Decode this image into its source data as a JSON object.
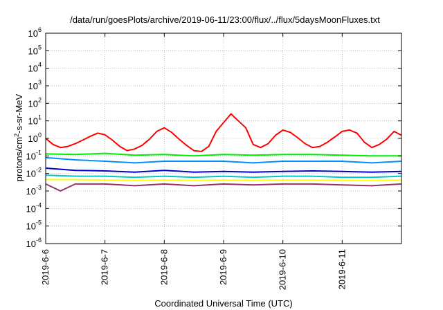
{
  "chart_data": {
    "type": "line",
    "title": "/data/run/goesPlots/archive/2019-06-11/23:00/flux/../flux/5daysMoonFluxes.txt",
    "xlabel": "Coordinated Universal Time (UTC)",
    "ylabel": {
      "pre": "protons/cm",
      "sup": "2",
      "post": "-s-sr-MeV"
    },
    "x_range": [
      "2019-06-06T00:00",
      "2019-06-12T00:00"
    ],
    "x_ticks": [
      "2019-6-6",
      "2019-6-7",
      "2019-6-8",
      "2019-6-9",
      "2019-6-10",
      "2019-6-11"
    ],
    "y_scale": "log",
    "ylim": [
      1e-06,
      1000000.0
    ],
    "y_ticks": [
      {
        "base": "10",
        "exp": "-6"
      },
      {
        "base": "10",
        "exp": "-5"
      },
      {
        "base": "10",
        "exp": "-4"
      },
      {
        "base": "10",
        "exp": "-3"
      },
      {
        "base": "10",
        "exp": "-2"
      },
      {
        "base": "10",
        "exp": "-1"
      },
      {
        "base": "10",
        "exp": "0"
      },
      {
        "base": "10",
        "exp": "1"
      },
      {
        "base": "10",
        "exp": "2"
      },
      {
        "base": "10",
        "exp": "3"
      },
      {
        "base": "10",
        "exp": "4"
      },
      {
        "base": "10",
        "exp": "5"
      },
      {
        "base": "10",
        "exp": "6"
      }
    ],
    "grid": true,
    "series": [
      {
        "color": "#ff0000",
        "x": [
          "2019-06-06T00:00",
          "2019-06-06T03:00",
          "2019-06-06T06:00",
          "2019-06-06T09:00",
          "2019-06-06T12:00",
          "2019-06-06T15:00",
          "2019-06-06T18:00",
          "2019-06-06T21:00",
          "2019-06-07T00:00",
          "2019-06-07T03:00",
          "2019-06-07T06:00",
          "2019-06-07T09:00",
          "2019-06-07T12:00",
          "2019-06-07T15:00",
          "2019-06-07T18:00",
          "2019-06-07T21:00",
          "2019-06-08T00:00",
          "2019-06-08T03:00",
          "2019-06-08T06:00",
          "2019-06-08T09:00",
          "2019-06-08T12:00",
          "2019-06-08T15:00",
          "2019-06-08T18:00",
          "2019-06-08T21:00",
          "2019-06-09T00:00",
          "2019-06-09T03:00",
          "2019-06-09T06:00",
          "2019-06-09T09:00",
          "2019-06-09T12:00",
          "2019-06-09T15:00",
          "2019-06-09T18:00",
          "2019-06-09T21:00",
          "2019-06-10T00:00",
          "2019-06-10T03:00",
          "2019-06-10T06:00",
          "2019-06-10T09:00",
          "2019-06-10T12:00",
          "2019-06-10T15:00",
          "2019-06-10T18:00",
          "2019-06-10T21:00",
          "2019-06-11T00:00",
          "2019-06-11T03:00",
          "2019-06-11T06:00",
          "2019-06-11T09:00",
          "2019-06-11T12:00",
          "2019-06-11T15:00",
          "2019-06-11T18:00",
          "2019-06-11T21:00",
          "2019-06-12T00:00"
        ],
        "values": [
          1.0,
          0.45,
          0.3,
          0.35,
          0.5,
          0.8,
          1.3,
          2.0,
          1.6,
          0.8,
          0.35,
          0.2,
          0.25,
          0.4,
          0.9,
          2.5,
          4.0,
          2.2,
          0.9,
          0.4,
          0.2,
          0.18,
          0.35,
          2.5,
          8.0,
          25.0,
          10.0,
          4.0,
          0.45,
          0.3,
          0.5,
          1.5,
          3.0,
          2.2,
          1.1,
          0.5,
          0.3,
          0.35,
          0.6,
          1.2,
          2.5,
          3.0,
          2.0,
          0.6,
          0.3,
          0.45,
          0.9,
          2.5,
          1.5
        ]
      },
      {
        "color": "#00ee00",
        "x": [
          "2019-06-06T00:00",
          "2019-06-06T12:00",
          "2019-06-07T00:00",
          "2019-06-07T12:00",
          "2019-06-08T00:00",
          "2019-06-08T12:00",
          "2019-06-09T00:00",
          "2019-06-09T12:00",
          "2019-06-10T00:00",
          "2019-06-10T12:00",
          "2019-06-11T00:00",
          "2019-06-11T12:00",
          "2019-06-12T00:00"
        ],
        "values": [
          0.13,
          0.12,
          0.14,
          0.11,
          0.12,
          0.1,
          0.12,
          0.11,
          0.12,
          0.12,
          0.11,
          0.1,
          0.1
        ]
      },
      {
        "color": "#0090ff",
        "x": [
          "2019-06-06T00:00",
          "2019-06-06T12:00",
          "2019-06-07T00:00",
          "2019-06-07T12:00",
          "2019-06-08T00:00",
          "2019-06-08T12:00",
          "2019-06-09T00:00",
          "2019-06-09T12:00",
          "2019-06-10T00:00",
          "2019-06-10T12:00",
          "2019-06-11T00:00",
          "2019-06-11T12:00",
          "2019-06-12T00:00"
        ],
        "values": [
          0.08,
          0.06,
          0.05,
          0.04,
          0.05,
          0.05,
          0.05,
          0.04,
          0.05,
          0.05,
          0.05,
          0.04,
          0.05
        ]
      },
      {
        "color": "#0000cc",
        "x": [
          "2019-06-06T00:00",
          "2019-06-06T12:00",
          "2019-06-07T00:00",
          "2019-06-07T12:00",
          "2019-06-08T00:00",
          "2019-06-08T12:00",
          "2019-06-09T00:00",
          "2019-06-09T12:00",
          "2019-06-10T00:00",
          "2019-06-10T12:00",
          "2019-06-11T00:00",
          "2019-06-11T12:00",
          "2019-06-12T00:00"
        ],
        "values": [
          0.02,
          0.015,
          0.014,
          0.012,
          0.015,
          0.012,
          0.013,
          0.012,
          0.013,
          0.014,
          0.013,
          0.012,
          0.013
        ]
      },
      {
        "color": "#00c8c8",
        "x": [
          "2019-06-06T00:00",
          "2019-06-06T12:00",
          "2019-06-07T00:00",
          "2019-06-07T12:00",
          "2019-06-08T00:00",
          "2019-06-08T12:00",
          "2019-06-09T00:00",
          "2019-06-09T12:00",
          "2019-06-10T00:00",
          "2019-06-10T12:00",
          "2019-06-11T00:00",
          "2019-06-11T12:00",
          "2019-06-12T00:00"
        ],
        "values": [
          0.008,
          0.007,
          0.007,
          0.006,
          0.007,
          0.006,
          0.007,
          0.006,
          0.007,
          0.007,
          0.006,
          0.006,
          0.007
        ]
      },
      {
        "color": "#ffff00",
        "x": [
          "2019-06-06T00:00",
          "2019-06-06T12:00",
          "2019-06-07T00:00",
          "2019-06-07T12:00",
          "2019-06-08T00:00",
          "2019-06-08T12:00",
          "2019-06-09T00:00",
          "2019-06-09T12:00",
          "2019-06-10T00:00",
          "2019-06-10T12:00",
          "2019-06-11T00:00",
          "2019-06-11T12:00",
          "2019-06-12T00:00"
        ],
        "values": [
          0.0045,
          0.0045,
          0.0042,
          0.004,
          0.0042,
          0.004,
          0.0042,
          0.004,
          0.0042,
          0.0042,
          0.004,
          0.004,
          0.0042
        ]
      },
      {
        "color": "#993366",
        "x": [
          "2019-06-06T00:00",
          "2019-06-06T06:00",
          "2019-06-06T12:00",
          "2019-06-07T00:00",
          "2019-06-07T12:00",
          "2019-06-08T00:00",
          "2019-06-08T12:00",
          "2019-06-09T00:00",
          "2019-06-09T12:00",
          "2019-06-10T00:00",
          "2019-06-10T12:00",
          "2019-06-11T00:00",
          "2019-06-11T12:00",
          "2019-06-12T00:00"
        ],
        "values": [
          0.0025,
          0.001,
          0.0025,
          0.0025,
          0.002,
          0.0025,
          0.002,
          0.0025,
          0.0022,
          0.0025,
          0.0025,
          0.0022,
          0.002,
          0.0025
        ]
      }
    ]
  }
}
